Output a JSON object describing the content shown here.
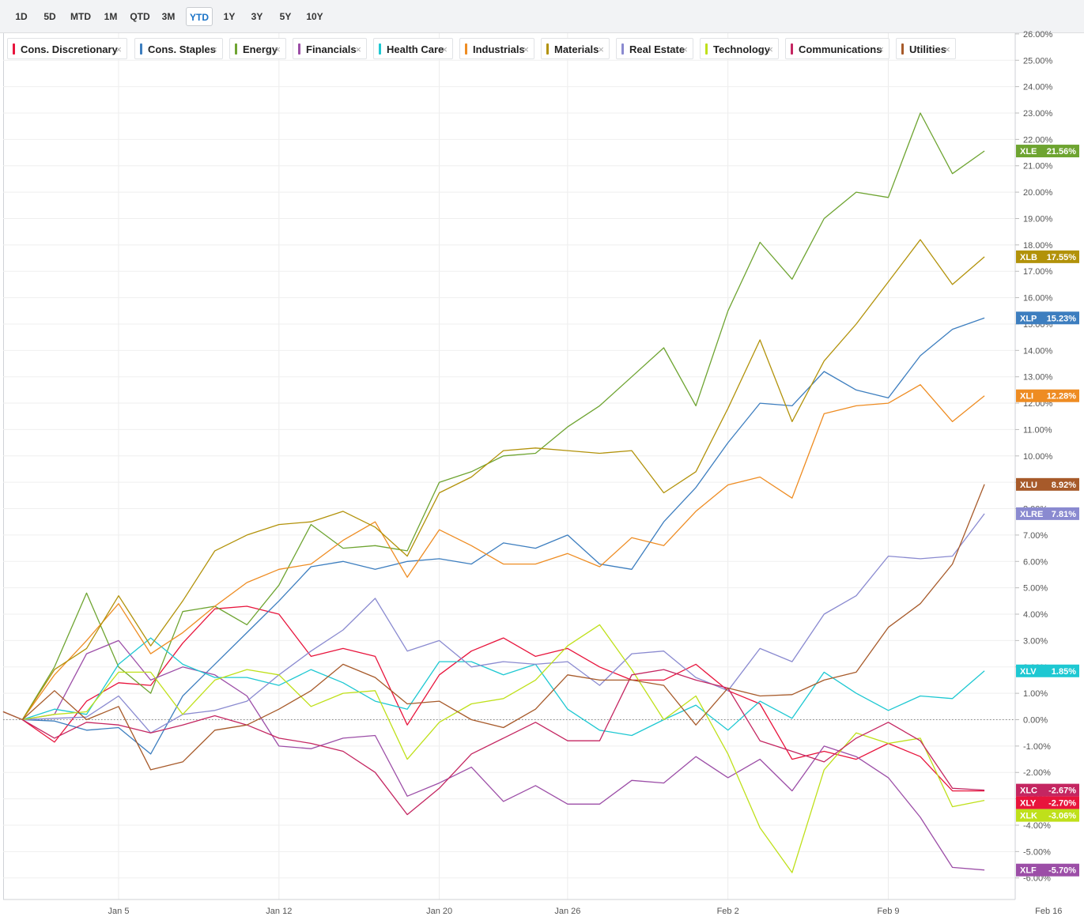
{
  "range_buttons": [
    {
      "label": "1D",
      "active": false
    },
    {
      "label": "5D",
      "active": false
    },
    {
      "label": "MTD",
      "active": false
    },
    {
      "label": "1M",
      "active": false
    },
    {
      "label": "QTD",
      "active": false
    },
    {
      "label": "3M",
      "active": false
    },
    {
      "label": "YTD",
      "active": true
    },
    {
      "label": "1Y",
      "active": false
    },
    {
      "label": "3Y",
      "active": false
    },
    {
      "label": "5Y",
      "active": false
    },
    {
      "label": "10Y",
      "active": false
    }
  ],
  "legend": [
    {
      "name": "Cons. Discretionary",
      "color": "#e8143c"
    },
    {
      "name": "Cons. Staples",
      "color": "#3d7ebf"
    },
    {
      "name": "Energy",
      "color": "#6ea431"
    },
    {
      "name": "Financials",
      "color": "#9c4ea7"
    },
    {
      "name": "Health Care",
      "color": "#1ec8d2"
    },
    {
      "name": "Industrials",
      "color": "#ee8c22"
    },
    {
      "name": "Materials",
      "color": "#b2920a"
    },
    {
      "name": "Real Estate",
      "color": "#8a8ad0"
    },
    {
      "name": "Technology",
      "color": "#bfe01a"
    },
    {
      "name": "Communications",
      "color": "#c42661"
    },
    {
      "name": "Utilities",
      "color": "#a75a2a"
    }
  ],
  "close_glyph": "×",
  "chart_data": {
    "type": "line",
    "y_unit": "%",
    "ylim": [
      -6.4,
      26.2
    ],
    "y_ticks": [
      "26.00%",
      "25.00%",
      "24.00%",
      "23.00%",
      "22.00%",
      "21.00%",
      "20.00%",
      "19.00%",
      "18.00%",
      "17.00%",
      "16.00%",
      "15.00%",
      "14.00%",
      "13.00%",
      "12.00%",
      "11.00%",
      "10.00%",
      "9.00%",
      "8.00%",
      "7.00%",
      "6.00%",
      "5.00%",
      "4.00%",
      "3.00%",
      "2.00%",
      "1.00%",
      "0.00%",
      "-1.00%",
      "-2.00%",
      "-3.00%",
      "-4.00%",
      "-5.00%",
      "-6.00%"
    ],
    "y_tick_values": [
      26,
      25,
      24,
      23,
      22,
      21,
      20,
      19,
      18,
      17,
      16,
      15,
      14,
      13,
      12,
      11,
      10,
      9,
      8,
      7,
      6,
      5,
      4,
      3,
      2,
      1,
      0,
      -1,
      -2,
      -3,
      -4,
      -5,
      -6
    ],
    "x_ticks": [
      "Jan 5",
      "Jan 12",
      "Jan 20",
      "Jan 26",
      "Feb 2",
      "Feb 9",
      "Feb 16"
    ],
    "x_tick_positions": [
      3,
      8,
      13,
      17,
      22,
      27,
      32
    ],
    "x_range": [
      -0.6,
      32
    ],
    "zero_line": true,
    "series": [
      {
        "name": "Cons. Discretionary",
        "ticker": "XLY",
        "last_label": "-2.70%",
        "color": "#e8143c",
        "values": [
          0,
          -0.85,
          0.7,
          1.4,
          1.3,
          2.9,
          4.2,
          4.3,
          4.0,
          2.4,
          2.7,
          2.4,
          -0.2,
          1.7,
          2.6,
          3.1,
          2.4,
          2.7,
          2.0,
          1.5,
          1.5,
          2.1,
          1.1,
          0.6,
          -1.5,
          -1.2,
          -1.5,
          -0.9,
          -1.4,
          -2.7,
          -2.7
        ]
      },
      {
        "name": "Cons. Staples",
        "ticker": "XLP",
        "last_label": "15.23%",
        "color": "#3d7ebf",
        "values": [
          0,
          -0.05,
          -0.4,
          -0.3,
          -1.3,
          0.9,
          2.1,
          3.3,
          4.5,
          5.8,
          6.0,
          5.7,
          6.0,
          6.1,
          5.9,
          6.7,
          6.5,
          7.0,
          5.9,
          5.7,
          7.5,
          8.8,
          10.5,
          12.0,
          11.9,
          13.2,
          12.5,
          12.2,
          13.8,
          14.8,
          15.23
        ]
      },
      {
        "name": "Energy",
        "ticker": "XLE",
        "last_label": "21.56%",
        "color": "#6ea431",
        "values": [
          0,
          2.0,
          4.8,
          2.0,
          1.0,
          4.1,
          4.3,
          3.6,
          5.1,
          7.4,
          6.5,
          6.6,
          6.4,
          9.0,
          9.4,
          10.0,
          10.1,
          11.1,
          11.9,
          13.0,
          14.1,
          11.9,
          15.5,
          18.1,
          16.7,
          19.0,
          20.0,
          19.8,
          23.0,
          20.7,
          21.56
        ]
      },
      {
        "name": "Financials",
        "ticker": "XLF",
        "last_label": "-5.70%",
        "color": "#9c4ea7",
        "values": [
          0,
          0.2,
          2.5,
          3.0,
          1.5,
          2.0,
          1.7,
          0.9,
          -1.0,
          -1.1,
          -0.7,
          -0.6,
          -2.9,
          -2.4,
          -1.8,
          -3.1,
          -2.5,
          -3.2,
          -3.2,
          -2.3,
          -2.4,
          -1.4,
          -2.2,
          -1.5,
          -2.7,
          -1.0,
          -1.4,
          -2.2,
          -3.7,
          -5.6,
          -5.7
        ]
      },
      {
        "name": "Health Care",
        "ticker": "XLV",
        "last_label": "1.85%",
        "color": "#1ec8d2",
        "values": [
          0,
          0.4,
          0.2,
          2.1,
          3.1,
          2.1,
          1.6,
          1.6,
          1.3,
          1.9,
          1.4,
          0.7,
          0.4,
          2.2,
          2.2,
          1.7,
          2.1,
          0.4,
          -0.4,
          -0.6,
          0.0,
          0.55,
          -0.4,
          0.7,
          0.05,
          1.8,
          1.0,
          0.35,
          0.9,
          0.8,
          1.85
        ]
      },
      {
        "name": "Industrials",
        "ticker": "XLI",
        "last_label": "12.28%",
        "color": "#ee8c22",
        "values": [
          0,
          1.7,
          3.0,
          4.4,
          2.5,
          3.3,
          4.3,
          5.2,
          5.7,
          5.9,
          6.8,
          7.5,
          5.4,
          7.2,
          6.6,
          5.9,
          5.9,
          6.3,
          5.8,
          6.9,
          6.6,
          7.9,
          8.9,
          9.2,
          8.4,
          11.6,
          11.9,
          12.0,
          12.7,
          11.3,
          12.28
        ]
      },
      {
        "name": "Materials",
        "ticker": "XLB",
        "last_label": "17.55%",
        "color": "#b2920a",
        "values": [
          0,
          1.9,
          2.7,
          4.7,
          2.8,
          4.5,
          6.4,
          7.0,
          7.4,
          7.5,
          7.9,
          7.3,
          6.2,
          8.6,
          9.2,
          10.2,
          10.3,
          10.2,
          10.1,
          10.2,
          8.6,
          9.4,
          11.8,
          14.4,
          11.3,
          13.6,
          15.0,
          16.6,
          18.2,
          16.5,
          17.55
        ]
      },
      {
        "name": "Real Estate",
        "ticker": "XLRE",
        "last_label": "7.81%",
        "color": "#8a8ad0",
        "values": [
          0,
          0.05,
          0.1,
          0.9,
          -0.5,
          0.2,
          0.35,
          0.7,
          1.7,
          2.6,
          3.4,
          4.6,
          2.6,
          3.0,
          2.0,
          2.2,
          2.1,
          2.2,
          1.3,
          2.5,
          2.6,
          1.6,
          1.1,
          2.7,
          2.2,
          4.0,
          4.7,
          6.2,
          6.1,
          6.2,
          7.81
        ]
      },
      {
        "name": "Technology",
        "ticker": "XLK",
        "last_label": "-3.06%",
        "color": "#bfe01a",
        "values": [
          0,
          0.2,
          0.3,
          1.8,
          1.8,
          0.2,
          1.5,
          1.9,
          1.7,
          0.5,
          1.0,
          1.1,
          -1.5,
          -0.1,
          0.6,
          0.8,
          1.5,
          2.8,
          3.6,
          1.9,
          0.0,
          0.9,
          -1.3,
          -4.1,
          -5.8,
          -1.9,
          -0.5,
          -0.9,
          -0.7,
          -3.3,
          -3.06
        ]
      },
      {
        "name": "Communications",
        "ticker": "XLC",
        "last_label": "-2.67%",
        "color": "#c42661",
        "values": [
          0,
          -0.7,
          -0.1,
          -0.2,
          -0.5,
          -0.2,
          0.15,
          -0.2,
          -0.7,
          -0.9,
          -1.2,
          -2.0,
          -3.6,
          -2.6,
          -1.3,
          -0.7,
          -0.1,
          -0.8,
          -0.8,
          1.7,
          1.9,
          1.5,
          1.2,
          -0.8,
          -1.2,
          -1.6,
          -0.7,
          -0.1,
          -0.8,
          -2.6,
          -2.67
        ]
      },
      {
        "name": "Utilities",
        "ticker": "XLU",
        "last_label": "8.92%",
        "color": "#a75a2a",
        "values": [
          0,
          1.1,
          0.0,
          0.5,
          -1.9,
          -1.6,
          -0.4,
          -0.2,
          0.4,
          1.1,
          2.1,
          1.6,
          0.6,
          0.7,
          0.0,
          -0.3,
          0.4,
          1.7,
          1.5,
          1.5,
          1.3,
          -0.2,
          1.2,
          0.9,
          0.95,
          1.5,
          1.8,
          3.5,
          4.4,
          5.9,
          8.92
        ]
      }
    ]
  }
}
